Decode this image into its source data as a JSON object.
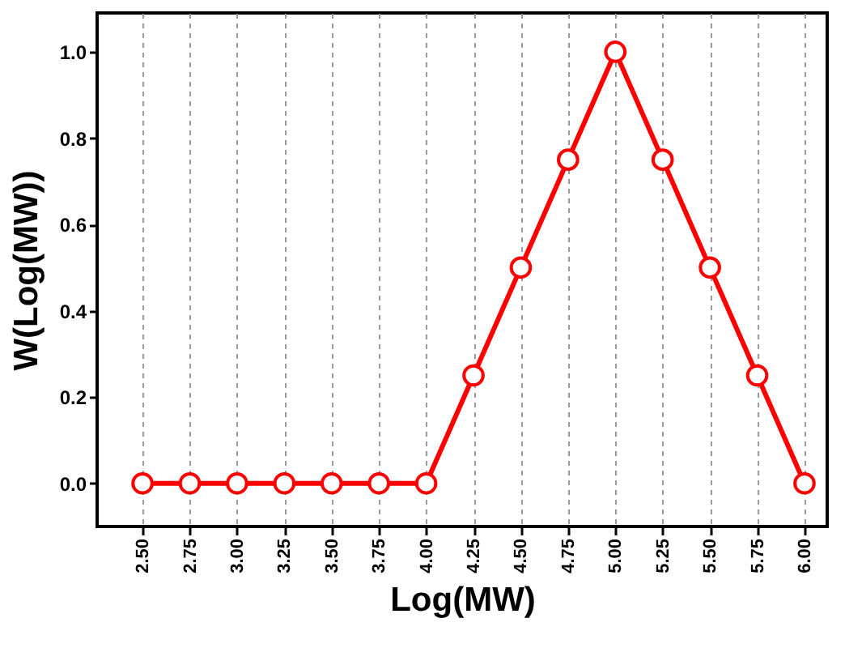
{
  "chart_data": {
    "type": "line",
    "xlabel": "Log(MW)",
    "ylabel": "W(Log(MW))",
    "x": [
      2.5,
      2.75,
      3.0,
      3.25,
      3.5,
      3.75,
      4.0,
      4.25,
      4.5,
      4.75,
      5.0,
      5.25,
      5.5,
      5.75,
      6.0
    ],
    "series": [
      {
        "color": "#ff0000",
        "values": [
          0,
          0,
          0,
          0,
          0,
          0,
          0,
          0.25,
          0.5,
          0.75,
          1.0,
          0.75,
          0.5,
          0.25,
          0
        ]
      }
    ],
    "xlim": [
      2.26,
      6.12
    ],
    "ylim": [
      -0.1,
      1.09
    ],
    "xticks": [
      {
        "value": 2.5,
        "label": "2.50"
      },
      {
        "value": 2.75,
        "label": "2.75"
      },
      {
        "value": 3.0,
        "label": "3.00"
      },
      {
        "value": 3.25,
        "label": "3.25"
      },
      {
        "value": 3.5,
        "label": "3.50"
      },
      {
        "value": 3.75,
        "label": "3.75"
      },
      {
        "value": 4.0,
        "label": "4.00"
      },
      {
        "value": 4.25,
        "label": "4.25"
      },
      {
        "value": 4.5,
        "label": "4.50"
      },
      {
        "value": 4.75,
        "label": "4.75"
      },
      {
        "value": 5.0,
        "label": "5.00"
      },
      {
        "value": 5.25,
        "label": "5.25"
      },
      {
        "value": 5.5,
        "label": "5.50"
      },
      {
        "value": 5.75,
        "label": "5.75"
      },
      {
        "value": 6.0,
        "label": "6.00"
      }
    ],
    "yticks": [
      {
        "value": 0,
        "label": "0.0"
      },
      {
        "value": 0.2,
        "label": "0.2"
      },
      {
        "value": 0.4,
        "label": "0.4"
      },
      {
        "value": 0.6,
        "label": "0.6"
      },
      {
        "value": 0.8,
        "label": "0.8"
      },
      {
        "value": 1.0,
        "label": "1.0"
      }
    ],
    "grid": "x",
    "marker": "circle",
    "line_style": "solid"
  }
}
